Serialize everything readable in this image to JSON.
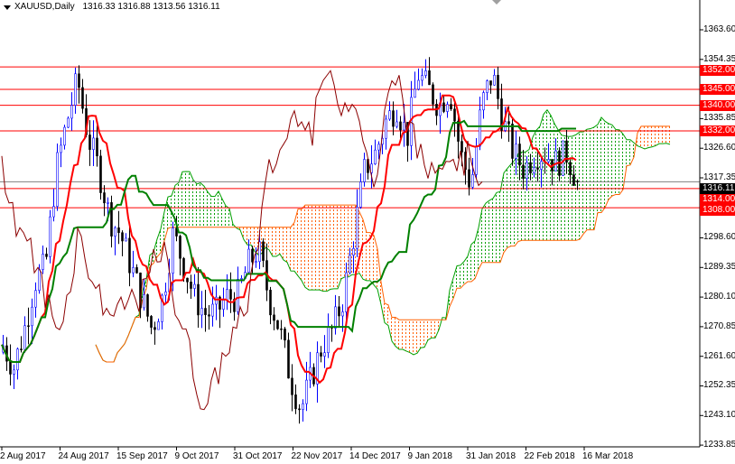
{
  "header": {
    "symbol": "XAUUSD,Daily",
    "ohlc": "1316.33 1316.88 1313.56 1316.11"
  },
  "chart_data": {
    "type": "candlestick",
    "symbol": "XAUUSD",
    "timeframe": "Daily",
    "indicator": "Ichimoku",
    "last": {
      "open": 1316.33,
      "high": 1316.88,
      "low": 1313.56,
      "close": 1316.11
    },
    "y_ticks": [
      "1363.60",
      "1354.35",
      "1335.85",
      "1326.60",
      "1317.35",
      "1298.60",
      "1289.35",
      "1280.10",
      "1270.85",
      "1261.60",
      "1252.35",
      "1243.10",
      "1233.85"
    ],
    "ylim": [
      1233.85,
      1363.6
    ],
    "x_ticks": [
      "2 Aug 2017",
      "24 Aug 2017",
      "15 Sep 2017",
      "9 Oct 2017",
      "31 Oct 2017",
      "22 Nov 2017",
      "14 Dec 2017",
      "9 Jan 2018",
      "31 Jan 2018",
      "22 Feb 2018",
      "16 Mar 2018"
    ],
    "approx_close_path": [
      1265,
      1258,
      1270,
      1285,
      1290,
      1320,
      1335,
      1348,
      1330,
      1320,
      1305,
      1300,
      1290,
      1280,
      1270,
      1280,
      1300,
      1290,
      1280,
      1275,
      1275,
      1280,
      1280,
      1290,
      1295,
      1280,
      1270,
      1255,
      1245,
      1255,
      1265,
      1270,
      1280,
      1300,
      1320,
      1325,
      1335,
      1340,
      1330,
      1350,
      1345,
      1340,
      1345,
      1325,
      1315,
      1340,
      1350,
      1335,
      1325,
      1320,
      1325,
      1325,
      1322,
      1325,
      1316
    ],
    "horizontal_levels": [
      "1352.00",
      "1345.00",
      "1340.00",
      "1332.00",
      "1314.00",
      "1308.00"
    ],
    "bid_label": "1316.11",
    "colors": {
      "level": "#ff0000",
      "tenkan": "#ff0000",
      "kijun": "#008000",
      "chikou": "#8b0000",
      "cloud_up": "#00a000",
      "cloud_down": "#ff6000",
      "bull": "#0000ff",
      "bear": "#000000"
    }
  }
}
